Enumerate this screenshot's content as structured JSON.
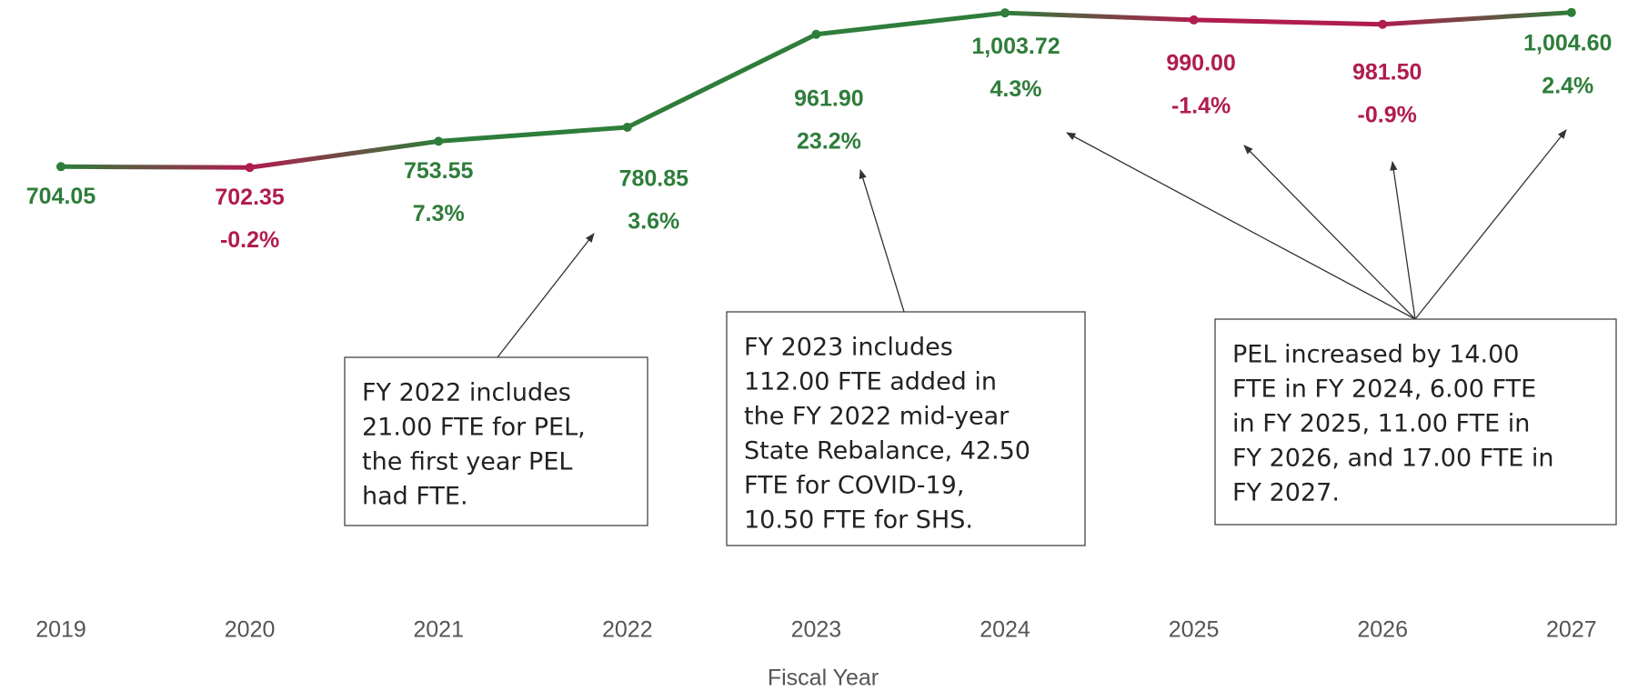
{
  "chart_data": {
    "type": "line",
    "x_label": "Fiscal Year",
    "categories": [
      "2019",
      "2020",
      "2021",
      "2022",
      "2023",
      "2024",
      "2025",
      "2026",
      "2027"
    ],
    "values": [
      704.05,
      702.35,
      753.55,
      780.85,
      961.9,
      1003.72,
      990.0,
      981.5,
      1004.6
    ],
    "value_labels": [
      "704.05",
      "702.35",
      "753.55",
      "780.85",
      "961.90",
      "1,003.72",
      "990.00",
      "981.50",
      "1,004.60"
    ],
    "change_labels": [
      null,
      "-0.2%",
      "7.3%",
      "3.6%",
      "23.2%",
      "4.3%",
      "-1.4%",
      "-0.9%",
      "2.4%"
    ],
    "point_colors": [
      "#2e7d3a",
      "#b01c4e",
      "#2e7d3a",
      "#2e7d3a",
      "#2e7d3a",
      "#2e7d3a",
      "#b01c4e",
      "#b01c4e",
      "#2e7d3a"
    ],
    "ylim": [
      600,
      1020
    ],
    "annotations": [
      {
        "lines": [
          "FY 2022 includes",
          "21.00 FTE for PEL,",
          "the first year PEL",
          "had FTE."
        ]
      },
      {
        "lines": [
          "FY 2023 includes",
          "112.00 FTE added in",
          "the FY 2022 mid-year",
          "State Rebalance, 42.50",
          "FTE for COVID-19,",
          "10.50 FTE for SHS."
        ]
      },
      {
        "lines": [
          "PEL increased by 14.00",
          "FTE in FY 2024, 6.00 FTE",
          "in FY 2025, 11.00 FTE in",
          "FY 2026, and 17.00 FTE in",
          "FY 2027."
        ]
      }
    ]
  }
}
